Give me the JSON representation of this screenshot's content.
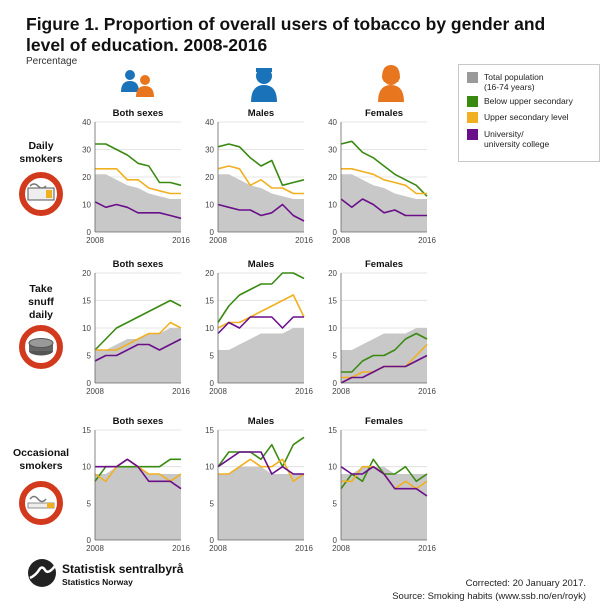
{
  "title": "Figure 1. Proportion of overall users of tobacco by gender and level of education. 2008-2016",
  "subtitle": "Percentage",
  "legend": {
    "total": "Total population\n(16-74 years)",
    "below": "Below upper secondary",
    "upper": "Upper secondary level",
    "university": "University/\nuniversity college"
  },
  "colors": {
    "total": "#c8c8c8",
    "below": "#3a8a12",
    "upper": "#f0b020",
    "university": "#6a0f8a",
    "icon_red": "#d23a1e",
    "icon_blue": "#1a73b8",
    "icon_orange": "#e8761e"
  },
  "rows": [
    {
      "label": "Daily\nsmokers",
      "icon": "cigarette-pack-icon"
    },
    {
      "label": "Take\nsnuff\ndaily",
      "icon": "snuff-tin-icon"
    },
    {
      "label": "Occasional\nsmokers",
      "icon": "cigarette-icon"
    }
  ],
  "columns": [
    {
      "label": "Both sexes",
      "icon": "both-sexes-icon"
    },
    {
      "label": "Males",
      "icon": "male-icon"
    },
    {
      "label": "Females",
      "icon": "female-icon"
    }
  ],
  "x_tick_labels": [
    "2008",
    "2016"
  ],
  "chart_data": [
    {
      "type": "line",
      "row": "Daily smokers",
      "panel": "Both sexes",
      "x": [
        2008,
        2009,
        2010,
        2011,
        2012,
        2013,
        2014,
        2015,
        2016
      ],
      "ylim": [
        0,
        40
      ],
      "yticks": [
        0,
        10,
        20,
        30,
        40
      ],
      "series": [
        {
          "name": "Total population (16-74 years)",
          "values": [
            21,
            21,
            19,
            17,
            16,
            14,
            13,
            12,
            12
          ]
        },
        {
          "name": "Below upper secondary",
          "values": [
            32,
            32,
            30,
            28,
            25,
            24,
            18,
            18,
            17
          ]
        },
        {
          "name": "Upper secondary level",
          "values": [
            23,
            23,
            23,
            19,
            19,
            16,
            15,
            14,
            14
          ]
        },
        {
          "name": "University/university college",
          "values": [
            11,
            9,
            10,
            9,
            7,
            7,
            7,
            6,
            5
          ]
        }
      ]
    },
    {
      "type": "line",
      "row": "Daily smokers",
      "panel": "Males",
      "x": [
        2008,
        2009,
        2010,
        2011,
        2012,
        2013,
        2014,
        2015,
        2016
      ],
      "ylim": [
        0,
        40
      ],
      "yticks": [
        0,
        10,
        20,
        30,
        40
      ],
      "series": [
        {
          "name": "Total population (16-74 years)",
          "values": [
            21,
            21,
            19,
            17,
            16,
            14,
            13,
            12,
            12
          ]
        },
        {
          "name": "Below upper secondary",
          "values": [
            31,
            32,
            31,
            27,
            24,
            26,
            17,
            18,
            19
          ]
        },
        {
          "name": "Upper secondary level",
          "values": [
            23,
            24,
            23,
            17,
            19,
            16,
            16,
            14,
            14
          ]
        },
        {
          "name": "University/university college",
          "values": [
            10,
            9,
            8,
            8,
            6,
            7,
            10,
            6,
            4
          ]
        }
      ]
    },
    {
      "type": "line",
      "row": "Daily smokers",
      "panel": "Females",
      "x": [
        2008,
        2009,
        2010,
        2011,
        2012,
        2013,
        2014,
        2015,
        2016
      ],
      "ylim": [
        0,
        40
      ],
      "yticks": [
        0,
        10,
        20,
        30,
        40
      ],
      "series": [
        {
          "name": "Total population (16-74 years)",
          "values": [
            21,
            21,
            19,
            17,
            16,
            14,
            13,
            12,
            12
          ]
        },
        {
          "name": "Below upper secondary",
          "values": [
            32,
            33,
            29,
            27,
            24,
            21,
            19,
            17,
            13
          ]
        },
        {
          "name": "Upper secondary level",
          "values": [
            23,
            23,
            22,
            21,
            19,
            18,
            17,
            14,
            14
          ]
        },
        {
          "name": "University/university college",
          "values": [
            12,
            9,
            12,
            10,
            7,
            8,
            6,
            6,
            6
          ]
        }
      ]
    },
    {
      "type": "line",
      "row": "Take snuff daily",
      "panel": "Both sexes",
      "x": [
        2008,
        2009,
        2010,
        2011,
        2012,
        2013,
        2014,
        2015,
        2016
      ],
      "ylim": [
        0,
        20
      ],
      "yticks": [
        0,
        5,
        10,
        15,
        20
      ],
      "series": [
        {
          "name": "Total population (16-74 years)",
          "values": [
            6,
            6,
            7,
            8,
            8,
            9,
            9,
            10,
            10
          ]
        },
        {
          "name": "Below upper secondary",
          "values": [
            6,
            8,
            10,
            11,
            12,
            13,
            14,
            15,
            14
          ]
        },
        {
          "name": "Upper secondary level",
          "values": [
            6,
            6,
            6,
            7,
            8,
            9,
            9,
            11,
            10
          ]
        },
        {
          "name": "University/university college",
          "values": [
            4,
            5,
            5,
            6,
            7,
            7,
            6,
            7,
            8
          ]
        }
      ]
    },
    {
      "type": "line",
      "row": "Take snuff daily",
      "panel": "Males",
      "x": [
        2008,
        2009,
        2010,
        2011,
        2012,
        2013,
        2014,
        2015,
        2016
      ],
      "ylim": [
        0,
        20
      ],
      "yticks": [
        0,
        5,
        10,
        15,
        20
      ],
      "series": [
        {
          "name": "Total population (16-74 years)",
          "values": [
            6,
            6,
            7,
            8,
            9,
            9,
            9,
            10,
            10
          ]
        },
        {
          "name": "Below upper secondary",
          "values": [
            11,
            14,
            16,
            17,
            18,
            18,
            20,
            20,
            19
          ]
        },
        {
          "name": "Upper secondary level",
          "values": [
            10,
            11,
            11,
            12,
            13,
            14,
            15,
            16,
            12
          ]
        },
        {
          "name": "University/university college",
          "values": [
            9,
            11,
            10,
            12,
            12,
            12,
            10,
            12,
            12
          ]
        }
      ]
    },
    {
      "type": "line",
      "row": "Take snuff daily",
      "panel": "Females",
      "x": [
        2008,
        2009,
        2010,
        2011,
        2012,
        2013,
        2014,
        2015,
        2016
      ],
      "ylim": [
        0,
        20
      ],
      "yticks": [
        0,
        5,
        10,
        15,
        20
      ],
      "series": [
        {
          "name": "Total population (16-74 years)",
          "values": [
            6,
            6,
            7,
            8,
            9,
            9,
            9,
            10,
            10
          ]
        },
        {
          "name": "Below upper secondary",
          "values": [
            2,
            2,
            4,
            5,
            5,
            6,
            8,
            9,
            8
          ]
        },
        {
          "name": "Upper secondary level",
          "values": [
            1,
            1,
            2,
            2,
            3,
            3,
            3,
            5,
            7
          ]
        },
        {
          "name": "University/university college",
          "values": [
            0,
            1,
            1,
            2,
            3,
            3,
            3,
            4,
            5
          ]
        }
      ]
    },
    {
      "type": "line",
      "row": "Occasional smokers",
      "panel": "Both sexes",
      "x": [
        2008,
        2009,
        2010,
        2011,
        2012,
        2013,
        2014,
        2015,
        2016
      ],
      "ylim": [
        0,
        15
      ],
      "yticks": [
        0,
        5,
        10,
        15
      ],
      "series": [
        {
          "name": "Total population (16-74 years)",
          "values": [
            9,
            9,
            10,
            10,
            10,
            9,
            9,
            9,
            9
          ]
        },
        {
          "name": "Below upper secondary",
          "values": [
            8,
            10,
            10,
            10,
            10,
            10,
            10,
            11,
            11
          ]
        },
        {
          "name": "Upper secondary level",
          "values": [
            9,
            8,
            10,
            11,
            10,
            9,
            9,
            8,
            9
          ]
        },
        {
          "name": "University/university college",
          "values": [
            10,
            10,
            10,
            11,
            10,
            8,
            8,
            8,
            7
          ]
        }
      ]
    },
    {
      "type": "line",
      "row": "Occasional smokers",
      "panel": "Males",
      "x": [
        2008,
        2009,
        2010,
        2011,
        2012,
        2013,
        2014,
        2015,
        2016
      ],
      "ylim": [
        0,
        15
      ],
      "yticks": [
        0,
        5,
        10,
        15
      ],
      "series": [
        {
          "name": "Total population (16-74 years)",
          "values": [
            9,
            9,
            10,
            10,
            10,
            9,
            9,
            9,
            9
          ]
        },
        {
          "name": "Below upper secondary",
          "values": [
            10,
            12,
            12,
            12,
            11,
            13,
            10,
            13,
            14
          ]
        },
        {
          "name": "Upper secondary level",
          "values": [
            9,
            9,
            10,
            11,
            10,
            10,
            11,
            8,
            9
          ]
        },
        {
          "name": "University/university college",
          "values": [
            10,
            11,
            12,
            12,
            12,
            9,
            10,
            9,
            9
          ]
        }
      ]
    },
    {
      "type": "line",
      "row": "Occasional smokers",
      "panel": "Females",
      "x": [
        2008,
        2009,
        2010,
        2011,
        2012,
        2013,
        2014,
        2015,
        2016
      ],
      "ylim": [
        0,
        15
      ],
      "yticks": [
        0,
        5,
        10,
        15
      ],
      "series": [
        {
          "name": "Total population (16-74 years)",
          "values": [
            9,
            9,
            10,
            10,
            10,
            9,
            9,
            9,
            9
          ]
        },
        {
          "name": "Below upper secondary",
          "values": [
            7,
            9,
            8,
            11,
            9,
            9,
            10,
            8,
            9
          ]
        },
        {
          "name": "Upper secondary level",
          "values": [
            8,
            8,
            10,
            10,
            9,
            7,
            8,
            7,
            8
          ]
        },
        {
          "name": "University/university college",
          "values": [
            10,
            9,
            9,
            10,
            9,
            7,
            7,
            7,
            6
          ]
        }
      ]
    }
  ],
  "footer": {
    "corrected": "Corrected: 20 January 2017.",
    "source": "Source: Smoking habits (www.ssb.no/en/royk)"
  },
  "logo": {
    "name": "Statistisk sentralbyrå",
    "sub": "Statistics Norway"
  }
}
